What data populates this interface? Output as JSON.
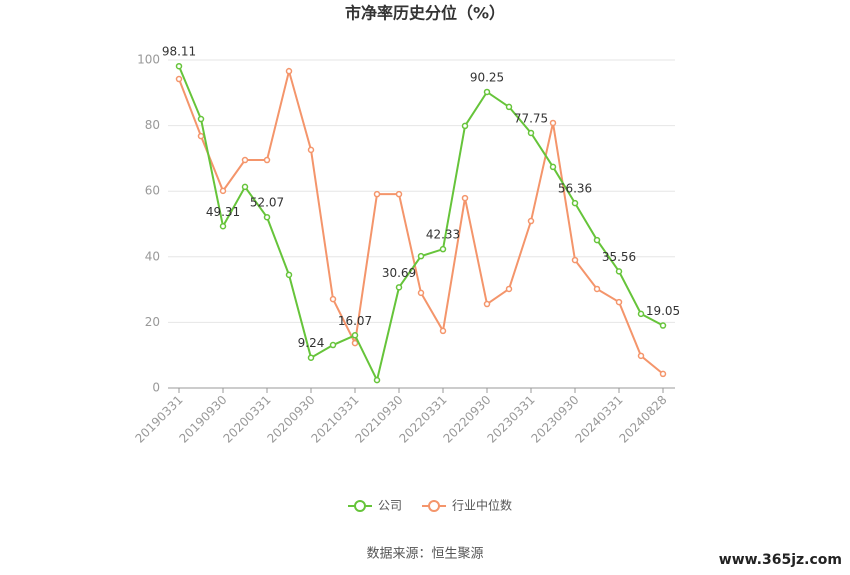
{
  "chart_data": {
    "type": "line",
    "title": "市净率历史分位（%）",
    "categories": [
      "20190331",
      null,
      "20190930",
      null,
      "20200331",
      null,
      "20200930",
      null,
      "20210331",
      null,
      "20210930",
      null,
      "20220331",
      null,
      "20220930",
      null,
      "20230331",
      null,
      "20230930",
      null,
      "20240331",
      null,
      "20240828"
    ],
    "series": [
      {
        "name": "公司",
        "color": "#66c43a",
        "values": [
          98.11,
          82,
          49.31,
          61.3,
          52.07,
          34.5,
          9.24,
          13.1,
          16.07,
          2.4,
          30.69,
          40.2,
          42.33,
          79.9,
          90.25,
          85.7,
          77.75,
          67.4,
          56.36,
          45.1,
          35.56,
          22.6,
          19.05
        ],
        "value_labels": [
          "98.11",
          null,
          "49.31",
          null,
          "52.07",
          null,
          "9.24",
          null,
          "16.07",
          null,
          "30.69",
          null,
          "42.33",
          null,
          "90.25",
          null,
          "77.75",
          null,
          "56.36",
          null,
          "35.56",
          null,
          "19.05"
        ]
      },
      {
        "name": "行业中位数",
        "color": "#f4956b",
        "values": [
          94.2,
          76.8,
          60.1,
          69.5,
          69.5,
          96.6,
          72.6,
          27.1,
          13.7,
          59.1,
          59.1,
          29.0,
          17.4,
          57.9,
          25.6,
          30.2,
          50.9,
          80.8,
          39.0,
          30.2,
          26.2,
          9.8,
          4.3
        ]
      }
    ],
    "ylim": [
      0,
      100
    ],
    "yticks": [
      0,
      20,
      40,
      60,
      80,
      100
    ],
    "grid": true,
    "source": "数据来源：恒生聚源",
    "watermark": "www.365jz.com"
  }
}
